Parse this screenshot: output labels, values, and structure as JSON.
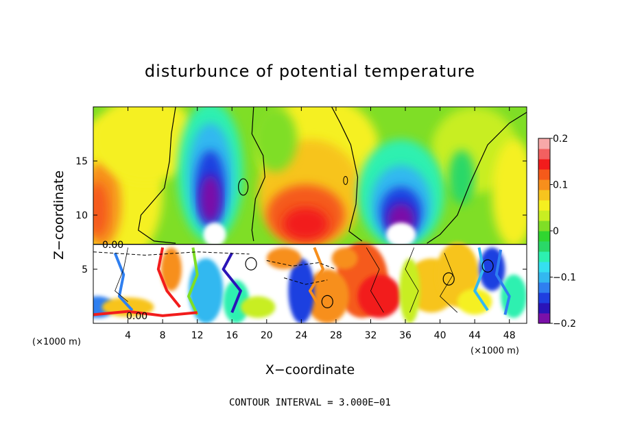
{
  "chart_data": {
    "type": "heatmap",
    "title": "disturbunce of potential temperature",
    "xlabel": "X−coordinate",
    "ylabel": "Z−coordinate",
    "x_unit": "(×1000 m)",
    "z_unit": "(×1000 m)",
    "footer": "CONTOUR INTERVAL = 3.000E−01",
    "xlim": [
      0,
      50
    ],
    "ylim": [
      0,
      20
    ],
    "x_ticks": [
      "4",
      "8",
      "12",
      "16",
      "20",
      "24",
      "28",
      "32",
      "36",
      "40",
      "44",
      "48"
    ],
    "y_ticks": [
      "5",
      "10",
      "15"
    ],
    "contour_labels": [
      "0.00",
      "0.00"
    ],
    "colorbar": {
      "range": [
        -0.2,
        0.2
      ],
      "ticks": [
        "0.2",
        "0.1",
        "0",
        "−0.1",
        "−0.2"
      ],
      "colors": [
        "#7a10a8",
        "#2a14b8",
        "#1f3fe0",
        "#2f7ff0",
        "#33b8f0",
        "#35e0f0",
        "#2df0b0",
        "#2ad868",
        "#30d630",
        "#7fde26",
        "#c8ee22",
        "#f5f020",
        "#f7c41e",
        "#f78f1c",
        "#f55a1a",
        "#f21c1c",
        "#f26060",
        "#f7a8a8"
      ]
    },
    "features": [
      {
        "name": "cold-core",
        "x": 13.5,
        "z": 12.5,
        "value": -0.2
      },
      {
        "name": "cold-core",
        "x": 35.5,
        "z": 10.5,
        "value": -0.2
      },
      {
        "name": "warm-core",
        "x": 24.5,
        "z": 9.3,
        "value": 0.15
      },
      {
        "name": "warm-core",
        "x": 0.8,
        "z": 11.0,
        "value": 0.1
      },
      {
        "name": "cold-patch",
        "x": 42.5,
        "z": 13.5,
        "value": -0.05
      }
    ]
  }
}
